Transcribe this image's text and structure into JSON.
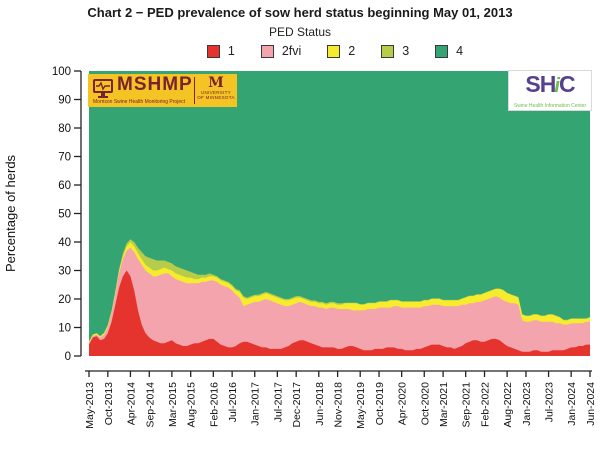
{
  "title": "Chart 2 − PED prevalence of sow herd status beginning May 01, 2013",
  "legend": {
    "title": "PED Status",
    "items": [
      {
        "label": "1",
        "color": "#e5332e"
      },
      {
        "label": "2fvi",
        "color": "#f3a4ad"
      },
      {
        "label": "2",
        "color": "#f6ec2d"
      },
      {
        "label": "3",
        "color": "#b6cc4a"
      },
      {
        "label": "4",
        "color": "#34a473"
      }
    ]
  },
  "logos": {
    "mshmp": {
      "acronym": "MSHMP",
      "subtitle": "Morrison Swine Health Monitoring Project",
      "university_mark": "M",
      "university_line1": "University",
      "university_line2": "of Minnesota",
      "bg_color": "#f4c324",
      "fg_color": "#7a2230"
    },
    "shic": {
      "part1": "SH",
      "part2": "i",
      "part3": "C",
      "subtitle": "Swine Health Information Center",
      "purple": "#55418f",
      "green": "#6cbf4a"
    }
  },
  "chart_data": {
    "type": "area",
    "stacked": true,
    "title": "Chart 2 − PED prevalence of sow herd status beginning May 01, 2013",
    "legend_title": "PED Status",
    "xlabel": "",
    "ylabel": "Percentage of herds",
    "ylim": [
      0,
      100
    ],
    "y_ticks": [
      0,
      10,
      20,
      30,
      40,
      50,
      60,
      70,
      80,
      90,
      100
    ],
    "x_unit": "month",
    "x_start": "May-2013",
    "x_end": "Jun-2024",
    "n_points": 134,
    "grid": false,
    "legend_position": "top",
    "x_ticks": [
      {
        "i": 0,
        "label": "May-2013"
      },
      {
        "i": 5,
        "label": "Oct-2013"
      },
      {
        "i": 11,
        "label": "Apr-2014"
      },
      {
        "i": 16,
        "label": "Sep-2014"
      },
      {
        "i": 22,
        "label": "Mar-2015"
      },
      {
        "i": 27,
        "label": "Aug-2015"
      },
      {
        "i": 33,
        "label": "Feb-2016"
      },
      {
        "i": 38,
        "label": "Jul-2016"
      },
      {
        "i": 44,
        "label": "Jan-2017"
      },
      {
        "i": 50,
        "label": "Jul-2017"
      },
      {
        "i": 55,
        "label": "Dec-2017"
      },
      {
        "i": 61,
        "label": "Jun-2018"
      },
      {
        "i": 66,
        "label": "Nov-2018"
      },
      {
        "i": 72,
        "label": "May-2019"
      },
      {
        "i": 77,
        "label": "Oct-2019"
      },
      {
        "i": 83,
        "label": "Apr-2020"
      },
      {
        "i": 89,
        "label": "Oct-2020"
      },
      {
        "i": 94,
        "label": "Mar-2021"
      },
      {
        "i": 100,
        "label": "Sep-2021"
      },
      {
        "i": 105,
        "label": "Feb-2022"
      },
      {
        "i": 111,
        "label": "Aug-2022"
      },
      {
        "i": 116,
        "label": "Jan-2023"
      },
      {
        "i": 122,
        "label": "Jul-2023"
      },
      {
        "i": 128,
        "label": "Jan-2024"
      },
      {
        "i": 133,
        "label": "Jun-2024"
      }
    ],
    "series": [
      {
        "name": "1",
        "color": "#e5332e",
        "values": [
          4,
          6.5,
          7,
          5.5,
          6,
          8,
          12,
          18,
          24,
          28,
          30,
          28,
          23,
          16,
          11,
          8,
          6.5,
          5.5,
          5,
          4.5,
          4.5,
          5,
          5.5,
          4.5,
          4,
          3.5,
          3.5,
          4,
          4.5,
          4.5,
          5,
          5.5,
          6,
          6,
          5,
          4,
          3.5,
          3,
          3,
          3.5,
          4.5,
          5,
          5,
          4.5,
          4,
          3.5,
          3,
          3,
          2.5,
          2.5,
          2.5,
          2.5,
          3,
          3.5,
          4.5,
          5,
          5.5,
          5.5,
          5,
          4.5,
          4,
          3.5,
          3,
          3,
          3,
          3,
          2.5,
          2.5,
          3,
          3.5,
          3.5,
          3,
          2.5,
          2,
          2,
          2,
          2.5,
          2.5,
          2.5,
          3,
          3,
          3,
          2.5,
          2.5,
          2,
          2,
          2,
          2.5,
          2.5,
          3,
          3.5,
          4,
          4,
          4,
          3.5,
          3,
          3,
          2.5,
          3,
          3.5,
          4.5,
          5,
          5.5,
          5.5,
          5,
          5,
          5.5,
          6,
          6,
          5.5,
          4.5,
          3.5,
          3,
          2.5,
          2,
          1.5,
          1.5,
          1.5,
          2,
          2,
          1.5,
          1.5,
          1.5,
          2,
          2,
          2,
          2,
          2.5,
          3,
          3,
          3.5,
          3.5,
          4,
          4
        ]
      },
      {
        "name": "2fvi",
        "color": "#f3a4ad",
        "values": [
          0.5,
          0.5,
          0.5,
          1,
          1.5,
          2,
          3,
          4,
          5,
          6,
          7,
          10,
          13.5,
          18,
          21,
          22,
          22.5,
          22.5,
          23,
          24,
          24.5,
          24,
          22.5,
          22.5,
          22.5,
          22.5,
          22,
          21.5,
          21,
          21,
          21,
          20.5,
          20.5,
          20.5,
          21,
          21,
          21,
          21,
          20,
          18,
          16,
          12.5,
          13,
          14,
          15,
          15.5,
          16.5,
          17,
          17,
          16.5,
          16,
          15.5,
          14.5,
          14,
          13.5,
          13.5,
          13.5,
          13,
          13,
          13,
          13.5,
          13.5,
          14,
          13.5,
          14,
          14,
          14,
          14,
          13.5,
          13,
          12.5,
          13,
          13.5,
          14,
          14.5,
          14.5,
          14,
          14.5,
          14.5,
          14,
          14,
          14.5,
          15,
          14.5,
          15,
          15,
          15,
          14.5,
          14.5,
          14.5,
          14,
          14,
          14,
          14,
          14,
          14.5,
          14.5,
          15,
          14.5,
          14.5,
          13.5,
          13.5,
          13,
          13.5,
          14,
          14.5,
          14.5,
          14.5,
          15,
          15,
          15,
          15.5,
          15.5,
          16,
          16,
          11,
          10.5,
          10.5,
          10.5,
          10.5,
          10.5,
          10.5,
          10.5,
          10,
          9.5,
          9.5,
          9,
          8.5,
          8.5,
          8.5,
          8,
          8,
          8,
          8
        ]
      },
      {
        "name": "2",
        "color": "#f6ec2d",
        "values": [
          0.5,
          0.5,
          0.5,
          0.5,
          0.5,
          0.5,
          0.5,
          0.5,
          1,
          1,
          1.5,
          2,
          2,
          2,
          2,
          2,
          2,
          2,
          2,
          2,
          2,
          1.5,
          2,
          2,
          2,
          2,
          2,
          2,
          1.5,
          1.5,
          1.5,
          1.5,
          1.5,
          1.5,
          1.5,
          1.5,
          1.5,
          1.5,
          1.5,
          1.5,
          2,
          3,
          2,
          2,
          2,
          2,
          2,
          2,
          2,
          2,
          2,
          2,
          2,
          2,
          2,
          2,
          1.5,
          1.5,
          1.5,
          1.5,
          1.5,
          1.5,
          1.5,
          1.5,
          1.5,
          1.5,
          1.5,
          1.5,
          2,
          2,
          2.5,
          2.5,
          2,
          2,
          2,
          2,
          2,
          2,
          2,
          2,
          2.5,
          2,
          2,
          2,
          2,
          2,
          2,
          2,
          2,
          2,
          2,
          2,
          2,
          2,
          2,
          2,
          2,
          2,
          2,
          2,
          2.5,
          2.5,
          2.5,
          2.5,
          2.5,
          2.5,
          2.5,
          2.5,
          2.5,
          3,
          3.5,
          3,
          3,
          2.5,
          2.5,
          2,
          2,
          2,
          2,
          2,
          2,
          2,
          2.5,
          2.5,
          2.5,
          2,
          1.5,
          1.5,
          1.5,
          1.5,
          1.5,
          1.5,
          1,
          1.5
        ]
      },
      {
        "name": "3",
        "color": "#b6cc4a",
        "values": [
          0,
          0,
          0,
          0,
          0.2,
          0.5,
          0.5,
          0.5,
          0.5,
          1,
          1,
          1,
          1.5,
          2,
          2.5,
          3,
          3.5,
          4,
          3.5,
          3,
          2.5,
          2.5,
          2.5,
          2.5,
          2.5,
          2.5,
          2.5,
          2,
          2,
          1.5,
          1,
          1,
          1,
          0.5,
          0.5,
          0.5,
          0.5,
          0.5,
          0.5,
          0.5,
          0.5,
          0.5,
          0.5,
          0.5,
          0.5,
          0.5,
          0.5,
          0.5,
          0.5,
          0.5,
          0.5,
          0.5,
          0.5,
          0.5,
          0.5,
          0.5,
          0.5,
          0.5,
          0.5,
          0.5,
          0.5,
          0.5,
          0.5,
          0.5,
          0.5,
          0.5,
          0.5,
          0.5,
          0.2,
          0.2,
          0.2,
          0.2,
          0.2,
          0.2,
          0.2,
          0.2,
          0.2,
          0.2,
          0.2,
          0.2,
          0.2,
          0.2,
          0.2,
          0.2,
          0.2,
          0.2,
          0.2,
          0.2,
          0.2,
          0.2,
          0.2,
          0.2,
          0.2,
          0.2,
          0.2,
          0.2,
          0.2,
          0.2,
          0.2,
          0.2,
          0.2,
          0.2,
          0.2,
          0.2,
          0.2,
          0.2,
          0.2,
          0.2,
          0.2,
          0.2,
          0.2,
          0.2,
          0.2,
          0.2,
          0.2,
          0.2,
          0.2,
          0.2,
          0.2,
          0.2,
          0.2,
          0.2,
          0.2,
          0.2,
          0.2,
          0.2,
          0.2,
          0.2,
          0.2,
          0.2,
          0.2,
          0.2,
          0.2,
          0.2
        ]
      },
      {
        "name": "4",
        "color": "#34a473",
        "remainder_to_100": true
      }
    ]
  }
}
